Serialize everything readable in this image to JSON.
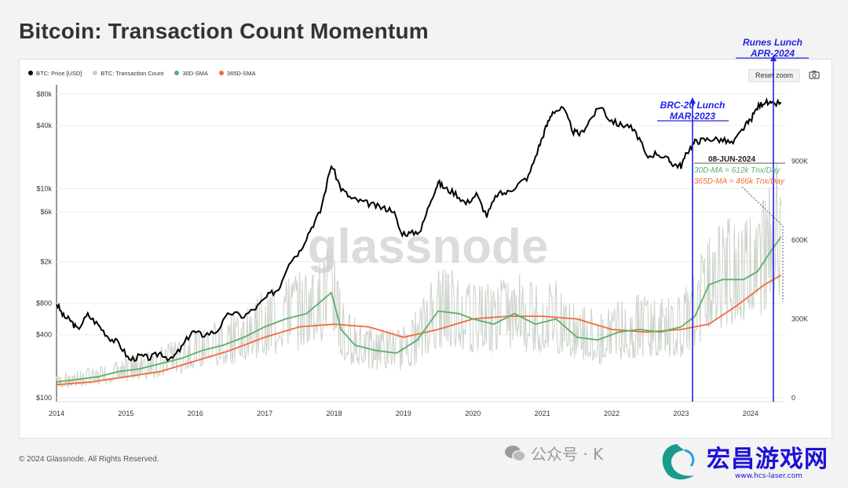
{
  "page": {
    "title": "Bitcoin: Transaction Count Momentum",
    "footer": "© 2024 Glassnode. All Rights Reserved.",
    "reset_zoom": "Reset zoom",
    "watermark": "glassnode",
    "wechat_text": "公众号 · K",
    "logo_text": "宏昌游戏网",
    "logo_url": "www.hcs-laser.com"
  },
  "colors": {
    "price": "#000000",
    "tx_count": "#c9cfc6",
    "sma30": "#5fae6a",
    "sma365": "#f26b3a",
    "annotation": "#2323e6"
  },
  "legend": [
    {
      "label": "BTC: Price [USD]",
      "color": "#000000"
    },
    {
      "label": "BTC: Transaction Count",
      "color": "#c9cfc6"
    },
    {
      "label": "30D-SMA",
      "color": "#5fae6a"
    },
    {
      "label": "365D-SMA",
      "color": "#f26b3a"
    }
  ],
  "annotations": {
    "brc20_l1": "BRC-20 Lunch",
    "brc20_l2": "MAR-2023",
    "runes_l1": "Runes Lunch",
    "runes_l2": "APR-2024",
    "date": "08-JUN-2024",
    "sma30": "30D-MA = 612k Tnx/Day",
    "sma365": "365D-MA = 466k Tnx/Day"
  },
  "chart_data": {
    "type": "line",
    "title": "Bitcoin: Transaction Count Momentum",
    "x_ticks": [
      "2014",
      "2015",
      "2016",
      "2017",
      "2018",
      "2019",
      "2020",
      "2021",
      "2022",
      "2023",
      "2024"
    ],
    "x_range": [
      2014.0,
      2024.5
    ],
    "y_left_ticks": [
      {
        "label": "$80k",
        "value": 80000
      },
      {
        "label": "$40k",
        "value": 40000
      },
      {
        "label": "$10k",
        "value": 10000
      },
      {
        "label": "$6k",
        "value": 6000
      },
      {
        "label": "$2k",
        "value": 2000
      },
      {
        "label": "$800",
        "value": 800
      },
      {
        "label": "$400",
        "value": 400
      },
      {
        "label": "$100",
        "value": 100
      }
    ],
    "y_left_scale": "log",
    "y_right_ticks": [
      {
        "label": "900K",
        "value": 900000
      },
      {
        "label": "600K",
        "value": 600000
      },
      {
        "label": "300K",
        "value": 300000
      },
      {
        "label": "0",
        "value": 0
      }
    ],
    "y_right_range": [
      0,
      1200000
    ],
    "series": [
      {
        "name": "BTC: Price [USD]",
        "axis": "left",
        "x": [
          2014.0,
          2014.1,
          2014.2,
          2014.3,
          2014.45,
          2014.6,
          2014.75,
          2014.9,
          2015.05,
          2015.2,
          2015.35,
          2015.5,
          2015.65,
          2015.8,
          2015.95,
          2016.1,
          2016.3,
          2016.5,
          2016.7,
          2016.9,
          2017.05,
          2017.2,
          2017.35,
          2017.5,
          2017.65,
          2017.8,
          2017.96,
          2018.1,
          2018.25,
          2018.4,
          2018.55,
          2018.7,
          2018.85,
          2018.96,
          2019.1,
          2019.25,
          2019.4,
          2019.5,
          2019.6,
          2019.75,
          2019.9,
          2020.05,
          2020.2,
          2020.35,
          2020.5,
          2020.65,
          2020.8,
          2020.95,
          2021.05,
          2021.15,
          2021.3,
          2021.45,
          2021.55,
          2021.7,
          2021.85,
          2021.95,
          2022.1,
          2022.25,
          2022.4,
          2022.5,
          2022.65,
          2022.8,
          2022.9,
          2023.0,
          2023.1,
          2023.2,
          2023.3,
          2023.45,
          2023.6,
          2023.75,
          2023.9,
          2024.0,
          2024.1,
          2024.2,
          2024.3,
          2024.44
        ],
        "values": [
          800,
          600,
          550,
          450,
          620,
          500,
          380,
          330,
          230,
          250,
          240,
          270,
          230,
          300,
          430,
          400,
          430,
          650,
          600,
          750,
          950,
          1100,
          2000,
          2500,
          4000,
          6000,
          17000,
          10000,
          8000,
          7500,
          7000,
          6500,
          6300,
          3800,
          3700,
          4000,
          8000,
          11500,
          10000,
          9000,
          7200,
          8800,
          5500,
          8800,
          9200,
          11000,
          13000,
          25000,
          38000,
          55000,
          58000,
          35000,
          33000,
          47000,
          62000,
          47000,
          41000,
          40000,
          30000,
          20000,
          22000,
          19000,
          17000,
          16500,
          23000,
          28000,
          29000,
          30000,
          29000,
          27000,
          38000,
          45000,
          60000,
          68000,
          63000,
          67000
        ]
      },
      {
        "name": "30D-SMA",
        "axis": "right",
        "x": [
          2014.0,
          2014.3,
          2014.6,
          2014.9,
          2015.2,
          2015.5,
          2015.8,
          2016.1,
          2016.4,
          2016.7,
          2017.0,
          2017.3,
          2017.6,
          2017.96,
          2018.1,
          2018.3,
          2018.6,
          2018.9,
          2019.2,
          2019.5,
          2019.8,
          2020.0,
          2020.3,
          2020.6,
          2020.9,
          2021.2,
          2021.5,
          2021.8,
          2022.1,
          2022.4,
          2022.7,
          2023.0,
          2023.2,
          2023.4,
          2023.6,
          2023.9,
          2024.1,
          2024.3,
          2024.44
        ],
        "values": [
          60000,
          70000,
          80000,
          100000,
          110000,
          130000,
          150000,
          180000,
          200000,
          230000,
          270000,
          300000,
          320000,
          400000,
          260000,
          200000,
          180000,
          170000,
          220000,
          330000,
          320000,
          300000,
          280000,
          320000,
          280000,
          300000,
          230000,
          220000,
          250000,
          260000,
          250000,
          270000,
          310000,
          430000,
          450000,
          450000,
          480000,
          560000,
          612000
        ]
      },
      {
        "name": "365D-SMA",
        "axis": "right",
        "x": [
          2014.0,
          2014.5,
          2015.0,
          2015.5,
          2016.0,
          2016.5,
          2017.0,
          2017.5,
          2018.0,
          2018.5,
          2019.0,
          2019.5,
          2020.0,
          2020.5,
          2021.0,
          2021.5,
          2022.0,
          2022.5,
          2023.0,
          2023.4,
          2023.8,
          2024.2,
          2024.44
        ],
        "values": [
          50000,
          60000,
          80000,
          100000,
          140000,
          180000,
          230000,
          270000,
          280000,
          270000,
          230000,
          260000,
          300000,
          310000,
          310000,
          300000,
          260000,
          250000,
          260000,
          280000,
          350000,
          430000,
          466000
        ]
      }
    ]
  }
}
